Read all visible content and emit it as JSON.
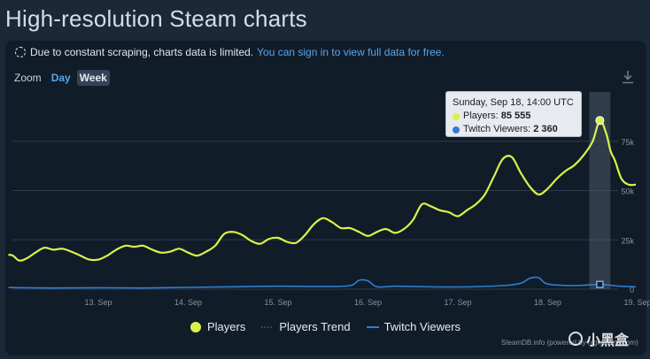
{
  "page": {
    "title": "High-resolution Steam charts"
  },
  "notice": {
    "text": "Due to constant scraping, charts data is limited.",
    "link": "You can sign in to view full data for free."
  },
  "zoom": {
    "label": "Zoom",
    "options": [
      "Day",
      "Week"
    ],
    "selected": "Week"
  },
  "tooltip": {
    "title": "Sunday, Sep 18, 14:00 UTC",
    "rows": [
      {
        "label": "Players:",
        "value": "85 555"
      },
      {
        "label": "Twitch Viewers:",
        "value": "2 360"
      }
    ]
  },
  "legend": [
    "Players",
    "Players Trend",
    "Twitch Viewers"
  ],
  "credit": "SteamDB.info (powered by highcharts.com)",
  "watermark": "小黑盒",
  "colors": {
    "players": "#d9f24a",
    "twitch": "#2f7fcf",
    "background": "#1b2838",
    "panel": "#111c29"
  },
  "icons": {
    "download": "download-icon"
  },
  "chart_data": {
    "type": "line",
    "x_ticks": [
      "13. Sep",
      "14. Sep",
      "15. Sep",
      "16. Sep",
      "17. Sep",
      "18. Sep",
      "19. Sep"
    ],
    "y_ticks": [
      "0",
      "25k",
      "50k",
      "75k"
    ],
    "ylim": [
      0,
      100000
    ],
    "grid": true,
    "legend_position": "bottom",
    "series": [
      {
        "name": "Players",
        "x": [
          12.0,
          12.05,
          12.12,
          12.2,
          12.3,
          12.4,
          12.5,
          12.6,
          12.7,
          12.8,
          12.9,
          13.0,
          13.1,
          13.2,
          13.3,
          13.4,
          13.5,
          13.6,
          13.7,
          13.8,
          13.9,
          14.0,
          14.1,
          14.2,
          14.3,
          14.4,
          14.5,
          14.6,
          14.7,
          14.8,
          14.9,
          15.0,
          15.1,
          15.2,
          15.3,
          15.4,
          15.5,
          15.6,
          15.7,
          15.8,
          15.9,
          16.0,
          16.1,
          16.2,
          16.3,
          16.4,
          16.5,
          16.6,
          16.7,
          16.8,
          16.9,
          17.0,
          17.1,
          17.2,
          17.3,
          17.4,
          17.5,
          17.6,
          17.7,
          17.8,
          17.9,
          18.0,
          18.1,
          18.2,
          18.3,
          18.4,
          18.5,
          18.58,
          18.65,
          18.7,
          18.75,
          18.82,
          18.9,
          18.98
        ],
        "values": [
          17500,
          17000,
          14500,
          15500,
          18500,
          21000,
          20000,
          20500,
          19000,
          17000,
          15000,
          15000,
          17000,
          20000,
          22000,
          21500,
          22000,
          20000,
          18500,
          19000,
          20500,
          18500,
          17000,
          19000,
          22000,
          28000,
          29000,
          27500,
          24500,
          23000,
          25500,
          26000,
          24000,
          23500,
          27500,
          33000,
          36000,
          34000,
          31000,
          31000,
          29000,
          27000,
          29000,
          30500,
          28500,
          30500,
          35000,
          43000,
          42000,
          40000,
          39000,
          37000,
          40000,
          43000,
          48000,
          57000,
          66000,
          67000,
          59000,
          52000,
          48000,
          51000,
          56000,
          60000,
          63000,
          68000,
          75000,
          85555,
          79000,
          70000,
          65000,
          56000,
          53000,
          53000
        ]
      },
      {
        "name": "Twitch Viewers",
        "x": [
          12.0,
          12.5,
          13.0,
          13.5,
          14.0,
          14.5,
          15.0,
          15.5,
          15.8,
          15.9,
          16.0,
          16.1,
          16.3,
          16.5,
          17.0,
          17.5,
          17.7,
          17.8,
          17.9,
          18.0,
          18.3,
          18.58,
          18.8,
          18.98
        ],
        "values": [
          800,
          600,
          700,
          600,
          900,
          1200,
          1500,
          1300,
          1800,
          4500,
          4200,
          1200,
          1500,
          1300,
          1100,
          1800,
          3000,
          5500,
          5800,
          2600,
          1800,
          2360,
          1500,
          1200
        ]
      }
    ]
  }
}
